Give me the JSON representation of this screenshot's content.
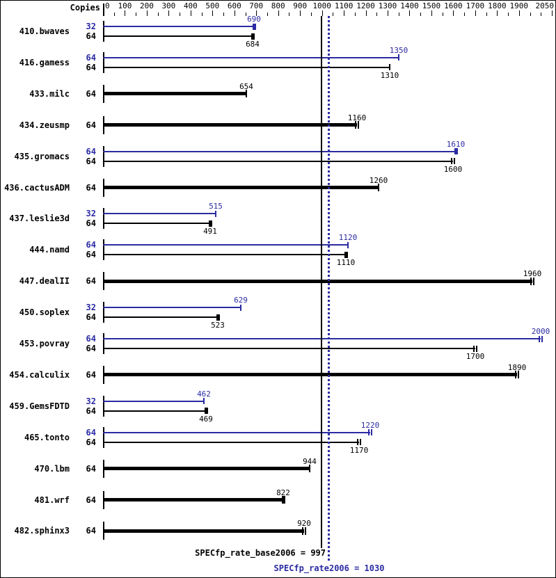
{
  "header": {
    "copies_label": "Copies"
  },
  "colors": {
    "peak": "#2b2ba3",
    "base": "#000000",
    "background": "#ffffff"
  },
  "chart_data": {
    "type": "bar",
    "orientation": "horizontal",
    "title": "",
    "xlabel": "",
    "ylabel": "Copies",
    "axis": {
      "min": 0,
      "max": 2050,
      "minor_tick_step": 50,
      "major_tick_step": 100,
      "tick_labels": [
        "0",
        "100",
        "200",
        "300",
        "400",
        "500",
        "600",
        "700",
        "800",
        "900",
        "1000",
        "1100",
        "1200",
        "1300",
        "1400",
        "1500",
        "1600",
        "1700",
        "1800",
        "1900",
        "2050"
      ]
    },
    "legend": {
      "peak_series": "SPECfp_rate2006 (peak, blue)",
      "base_series": "SPECfp_rate_base2006 (base, black)"
    },
    "benchmarks": [
      {
        "name": "410.bwaves",
        "bars": [
          {
            "series": "peak",
            "copies": "32",
            "value": 690,
            "cap": "block"
          },
          {
            "series": "base",
            "copies": "64",
            "value": 684,
            "cap": "block"
          }
        ]
      },
      {
        "name": "416.gamess",
        "bars": [
          {
            "series": "peak",
            "copies": "64",
            "value": 1350,
            "cap": "line"
          },
          {
            "series": "base",
            "copies": "64",
            "value": 1310,
            "cap": "line"
          }
        ]
      },
      {
        "name": "433.milc",
        "bars": [
          {
            "series": "single",
            "copies": "64",
            "value": 654,
            "cap": "line"
          }
        ]
      },
      {
        "name": "434.zeusmp",
        "bars": [
          {
            "series": "single",
            "copies": "64",
            "value": 1160,
            "cap": "double"
          }
        ]
      },
      {
        "name": "435.gromacs",
        "bars": [
          {
            "series": "peak",
            "copies": "64",
            "value": 1610,
            "cap": "block"
          },
          {
            "series": "base",
            "copies": "64",
            "value": 1600,
            "cap": "double"
          }
        ]
      },
      {
        "name": "436.cactusADM",
        "bars": [
          {
            "series": "single",
            "copies": "64",
            "value": 1260,
            "cap": "line"
          }
        ]
      },
      {
        "name": "437.leslie3d",
        "bars": [
          {
            "series": "peak",
            "copies": "32",
            "value": 515,
            "cap": "line"
          },
          {
            "series": "base",
            "copies": "64",
            "value": 491,
            "cap": "block"
          }
        ]
      },
      {
        "name": "444.namd",
        "bars": [
          {
            "series": "peak",
            "copies": "64",
            "value": 1120,
            "cap": "line"
          },
          {
            "series": "base",
            "copies": "64",
            "value": 1110,
            "cap": "block"
          }
        ]
      },
      {
        "name": "447.dealII",
        "bars": [
          {
            "series": "single",
            "copies": "64",
            "value": 1960,
            "cap": "double"
          }
        ]
      },
      {
        "name": "450.soplex",
        "bars": [
          {
            "series": "peak",
            "copies": "32",
            "value": 629,
            "cap": "line"
          },
          {
            "series": "base",
            "copies": "64",
            "value": 523,
            "cap": "block"
          }
        ]
      },
      {
        "name": "453.povray",
        "bars": [
          {
            "series": "peak",
            "copies": "64",
            "value": 2000,
            "cap": "double"
          },
          {
            "series": "base",
            "copies": "64",
            "value": 1700,
            "cap": "double"
          }
        ]
      },
      {
        "name": "454.calculix",
        "bars": [
          {
            "series": "single",
            "copies": "64",
            "value": 1890,
            "cap": "double"
          }
        ]
      },
      {
        "name": "459.GemsFDTD",
        "bars": [
          {
            "series": "peak",
            "copies": "32",
            "value": 462,
            "cap": "line"
          },
          {
            "series": "base",
            "copies": "64",
            "value": 469,
            "cap": "block"
          }
        ]
      },
      {
        "name": "465.tonto",
        "bars": [
          {
            "series": "peak",
            "copies": "64",
            "value": 1220,
            "cap": "double"
          },
          {
            "series": "base",
            "copies": "64",
            "value": 1170,
            "cap": "double"
          }
        ]
      },
      {
        "name": "470.lbm",
        "bars": [
          {
            "series": "single",
            "copies": "64",
            "value": 944,
            "cap": "line"
          }
        ]
      },
      {
        "name": "481.wrf",
        "bars": [
          {
            "series": "single",
            "copies": "64",
            "value": 822,
            "cap": "block"
          }
        ]
      },
      {
        "name": "482.sphinx3",
        "bars": [
          {
            "series": "single",
            "copies": "64",
            "value": 920,
            "cap": "double"
          }
        ]
      }
    ],
    "reference_lines": [
      {
        "series": "base",
        "value": 997,
        "style": "solid",
        "label": "SPECfp_rate_base2006 = 997"
      },
      {
        "series": "peak",
        "value": 1030,
        "style": "dotted",
        "label": "SPECfp_rate2006 = 1030"
      }
    ]
  }
}
